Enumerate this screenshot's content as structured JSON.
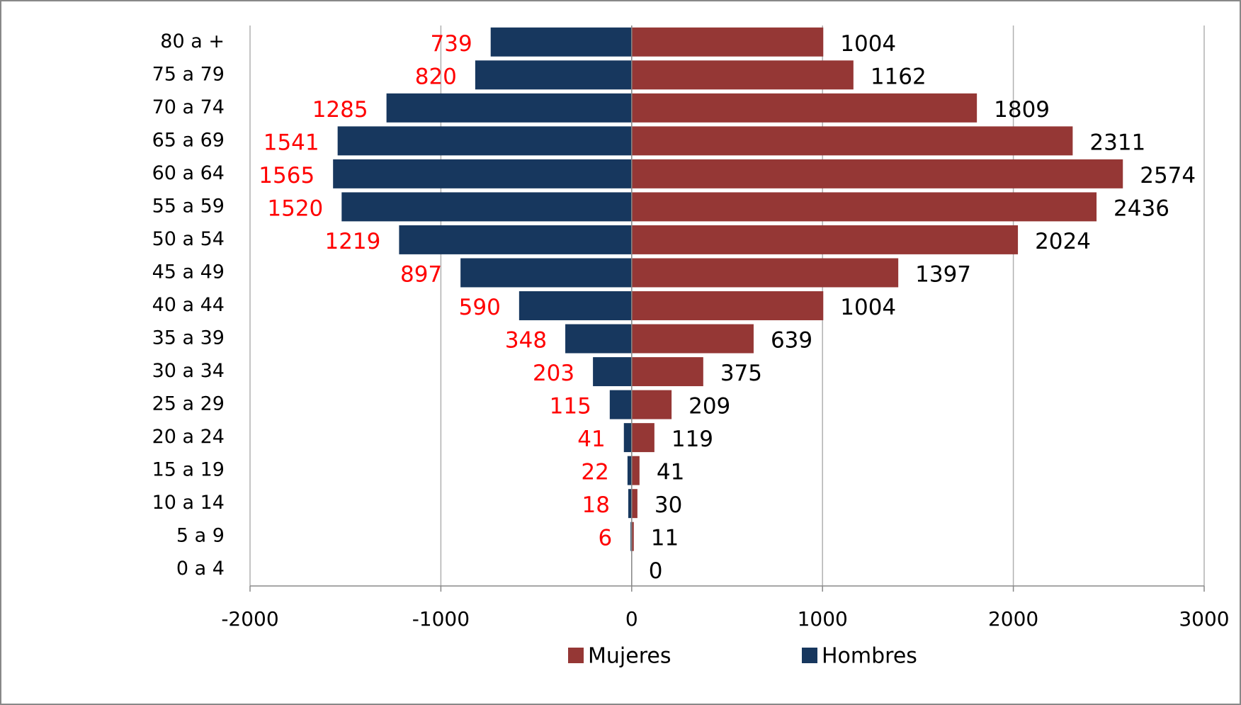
{
  "chart_data": {
    "type": "bar",
    "orientation": "horizontal",
    "categories": [
      "80 a +",
      "75 a 79",
      "70 a 74",
      "65 a 69",
      "60 a 64",
      "55 a 59",
      "50 a 54",
      "45 a 49",
      "40 a 44",
      "35 a 39",
      "30 a 34",
      "25 a 29",
      "20 a 24",
      "15 a 19",
      "10 a 14",
      "5 a 9",
      "0 a 4"
    ],
    "series": [
      {
        "name": "Mujeres",
        "color": "#953735",
        "label_color": "#000000",
        "values": [
          1004,
          1162,
          1809,
          2311,
          2574,
          2436,
          2024,
          1397,
          1004,
          639,
          375,
          209,
          119,
          41,
          30,
          11,
          0
        ]
      },
      {
        "name": "Hombres",
        "color": "#17375e",
        "label_color": "#ff0000",
        "values": [
          -739,
          -820,
          -1285,
          -1541,
          -1565,
          -1520,
          -1219,
          -897,
          -590,
          -348,
          -203,
          -115,
          -41,
          -22,
          -18,
          -6,
          null
        ],
        "value_labels": [
          "739",
          "820",
          "1285",
          "1541",
          "1565",
          "1520",
          "1219",
          "897",
          "590",
          "348",
          "203",
          "115",
          "41",
          "22",
          "18",
          "6",
          null
        ]
      }
    ],
    "xlim": [
      -2000,
      3000
    ],
    "xticks": [
      -2000,
      -1000,
      0,
      1000,
      2000,
      3000
    ],
    "grid": true,
    "legend": "bottom"
  }
}
